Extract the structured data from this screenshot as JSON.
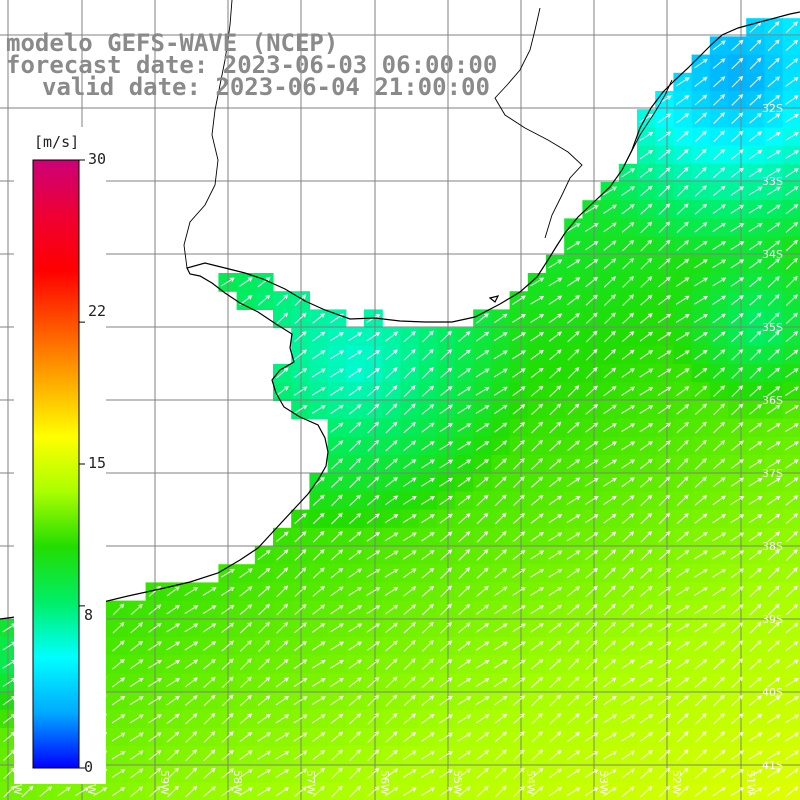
{
  "title": {
    "line1": "modelo GEFS-WAVE (NCEP)",
    "line2": "forecast date: 2023-06-03 06:00:00",
    "line3": "valid date: 2023-06-04 21:00:00"
  },
  "colorbar": {
    "unit": "[m/s]",
    "ticks": [
      "30",
      "22",
      "15",
      "8",
      "0"
    ],
    "tick_values": [
      30,
      22,
      15,
      8,
      0
    ],
    "min": 0,
    "max": 30,
    "colors": [
      "#0000ff",
      "#00aaff",
      "#00ffff",
      "#00ee66",
      "#22dd00",
      "#aaff00",
      "#ffff00",
      "#ffaa00",
      "#ff5500",
      "#ff0000",
      "#ee0033",
      "#cc0077"
    ]
  },
  "axes": {
    "lat_labels": [
      "32S",
      "33S",
      "34S",
      "35S",
      "36S",
      "37S",
      "38S",
      "39S",
      "40S",
      "41S"
    ],
    "lon_labels": [
      "61W",
      "60W",
      "59W",
      "58W",
      "57W",
      "56W",
      "55W",
      "54W",
      "53W",
      "52W",
      "51W"
    ]
  },
  "field": {
    "variable": "wind speed with direction arrows",
    "units": "m/s",
    "prevailing_direction": "toward NE",
    "notes_visible": "blue ~5-7 m/s near NE coast, cyan ~8 in estuary, green ~10-13 over most ocean, yellow-green ~14-16 in south"
  }
}
